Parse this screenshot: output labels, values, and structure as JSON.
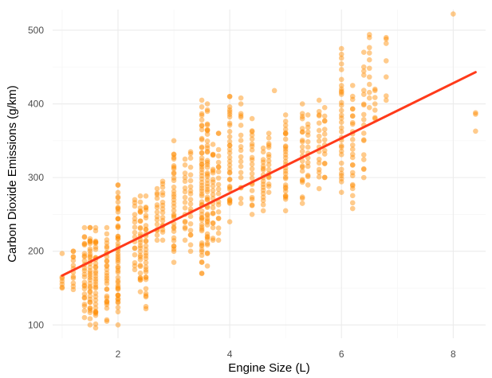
{
  "chart_data": {
    "type": "scatter",
    "title": "",
    "xlabel": "Engine Size (L)",
    "ylabel": "Carbon Dioxide Emissions (g/km)",
    "xlim": [
      0.83,
      8.58
    ],
    "ylim": [
      82,
      528
    ],
    "x_ticks": [
      2,
      4,
      6,
      8
    ],
    "y_ticks": [
      100,
      200,
      300,
      400,
      500
    ],
    "grid": true,
    "legend": "none",
    "point_color": "#ff8c00",
    "trend_color": "#ff3a1a",
    "trend_line": {
      "x": [
        1.0,
        8.4
      ],
      "y": [
        167,
        443
      ]
    },
    "column_groups": [
      {
        "x": 1.0,
        "y_range": [
          150,
          165
        ],
        "n": 4
      },
      {
        "x": 1.2,
        "y_range": [
          148,
          200
        ],
        "n": 10
      },
      {
        "x": 1.4,
        "y_range": [
          110,
          232
        ],
        "n": 24
      },
      {
        "x": 1.5,
        "y_range": [
          100,
          232
        ],
        "n": 32
      },
      {
        "x": 1.6,
        "y_range": [
          96,
          232
        ],
        "n": 32
      },
      {
        "x": 1.8,
        "y_range": [
          105,
          232
        ],
        "n": 28
      },
      {
        "x": 2.0,
        "y_range": [
          100,
          290
        ],
        "n": 48
      },
      {
        "x": 2.3,
        "y_range": [
          175,
          270
        ],
        "n": 14
      },
      {
        "x": 2.4,
        "y_range": [
          145,
          275
        ],
        "n": 26
      },
      {
        "x": 2.5,
        "y_range": [
          125,
          275
        ],
        "n": 28
      },
      {
        "x": 2.7,
        "y_range": [
          215,
          285
        ],
        "n": 12
      },
      {
        "x": 2.8,
        "y_range": [
          215,
          295
        ],
        "n": 14
      },
      {
        "x": 3.0,
        "y_range": [
          185,
          350
        ],
        "n": 32
      },
      {
        "x": 3.2,
        "y_range": [
          215,
          325
        ],
        "n": 14
      },
      {
        "x": 3.3,
        "y_range": [
          200,
          335
        ],
        "n": 18
      },
      {
        "x": 3.5,
        "y_range": [
          170,
          405
        ],
        "n": 48
      },
      {
        "x": 3.6,
        "y_range": [
          180,
          400
        ],
        "n": 44
      },
      {
        "x": 3.7,
        "y_range": [
          215,
          345
        ],
        "n": 20
      },
      {
        "x": 3.8,
        "y_range": [
          215,
          360
        ],
        "n": 18
      },
      {
        "x": 4.0,
        "y_range": [
          240,
          410
        ],
        "n": 30
      },
      {
        "x": 4.2,
        "y_range": [
          265,
          400
        ],
        "n": 16
      },
      {
        "x": 4.4,
        "y_range": [
          250,
          380
        ],
        "n": 20
      },
      {
        "x": 4.6,
        "y_range": [
          255,
          340
        ],
        "n": 16
      },
      {
        "x": 4.7,
        "y_range": [
          280,
          360
        ],
        "n": 14
      },
      {
        "x": 5.0,
        "y_range": [
          255,
          385
        ],
        "n": 28
      },
      {
        "x": 5.3,
        "y_range": [
          265,
          400
        ],
        "n": 20
      },
      {
        "x": 5.4,
        "y_range": [
          290,
          385
        ],
        "n": 12
      },
      {
        "x": 5.6,
        "y_range": [
          285,
          405
        ],
        "n": 14
      },
      {
        "x": 5.7,
        "y_range": [
          300,
          395
        ],
        "n": 12
      },
      {
        "x": 6.0,
        "y_range": [
          280,
          475
        ],
        "n": 30
      },
      {
        "x": 6.2,
        "y_range": [
          258,
          425
        ],
        "n": 24
      },
      {
        "x": 6.4,
        "y_range": [
          300,
          450
        ],
        "n": 16
      },
      {
        "x": 6.5,
        "y_range": [
          395,
          490
        ],
        "n": 8
      },
      {
        "x": 6.6,
        "y_range": [
          380,
          420
        ],
        "n": 5
      },
      {
        "x": 6.8,
        "y_range": [
          405,
          490
        ],
        "n": 4
      }
    ],
    "extra_points": [
      {
        "x": 8.0,
        "y": 522
      },
      {
        "x": 8.4,
        "y": 388
      },
      {
        "x": 8.4,
        "y": 386
      },
      {
        "x": 8.4,
        "y": 363
      },
      {
        "x": 1.0,
        "y": 197
      },
      {
        "x": 1.2,
        "y": 200
      },
      {
        "x": 4.0,
        "y": 410
      },
      {
        "x": 4.2,
        "y": 408
      },
      {
        "x": 6.4,
        "y": 470
      },
      {
        "x": 6.5,
        "y": 494
      },
      {
        "x": 6.8,
        "y": 488
      },
      {
        "x": 4.8,
        "y": 418
      },
      {
        "x": 1.5,
        "y": 232
      },
      {
        "x": 2.5,
        "y": 122
      },
      {
        "x": 3.5,
        "y": 170
      }
    ]
  }
}
